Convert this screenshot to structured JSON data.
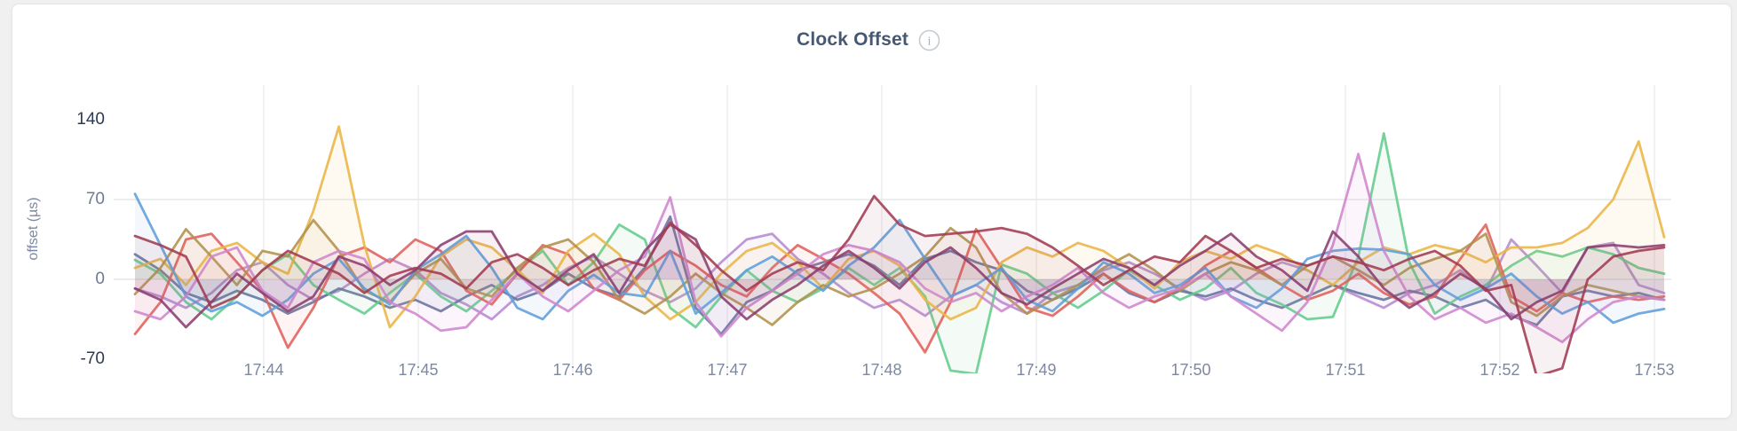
{
  "panel": {
    "title": "Clock Offset",
    "info_icon": "info-icon"
  },
  "chart_data": {
    "type": "line",
    "title": "Clock Offset",
    "xlabel": "",
    "ylabel": "offset (µs)",
    "ylim": [
      -70,
      140
    ],
    "yticks": [
      140,
      70,
      0,
      -70
    ],
    "ytick_colors": [
      "#2b3a55",
      "#6d7b95",
      "#6d7b95",
      "#2b3a55"
    ],
    "grid": true,
    "legend_position": "none",
    "x_start_time": "17:43:10",
    "x_interval_seconds": 10,
    "xticklabels": [
      "17:44",
      "17:45",
      "17:46",
      "17:47",
      "17:48",
      "17:49",
      "17:50",
      "17:51",
      "17:52",
      "17:53"
    ],
    "series": [
      {
        "name": "violet",
        "color": "#b58bd0",
        "values": [
          -8,
          -15,
          -25,
          -12,
          8,
          15,
          -5,
          -18,
          -10,
          5,
          18,
          8,
          -12,
          -22,
          -35,
          -15,
          -5,
          10,
          20,
          5,
          -10,
          -20,
          -8,
          15,
          35,
          40,
          18,
          5,
          -12,
          -25,
          -18,
          -32,
          -15,
          -5,
          -20,
          -30,
          -12,
          -5,
          8,
          15,
          5,
          -8,
          -18,
          -10,
          5,
          15,
          8,
          -5,
          -15,
          -25,
          -12,
          -5,
          8,
          -10,
          35,
          12,
          -12,
          28,
          32,
          -5,
          -12
        ]
      },
      {
        "name": "slate",
        "color": "#64739a",
        "values": [
          22,
          8,
          -12,
          -20,
          -10,
          -18,
          -30,
          -20,
          -8,
          -15,
          -25,
          -18,
          -28,
          -15,
          -5,
          -18,
          -10,
          5,
          -8,
          -15,
          10,
          55,
          -25,
          -48,
          -20,
          -10,
          8,
          15,
          22,
          12,
          -5,
          18,
          25,
          15,
          8,
          -10,
          -18,
          -8,
          5,
          -12,
          -20,
          -10,
          -15,
          -8,
          -18,
          -25,
          -15,
          -5,
          -12,
          -18,
          -10,
          -15,
          -25,
          -18,
          -32,
          -40,
          -15,
          -10,
          -15,
          -12,
          -18
        ]
      },
      {
        "name": "green",
        "color": "#63cc8c",
        "values": [
          17,
          5,
          -20,
          -35,
          -15,
          8,
          22,
          -5,
          -18,
          -30,
          -12,
          5,
          -15,
          -28,
          -10,
          8,
          25,
          -5,
          15,
          48,
          35,
          -25,
          -42,
          -15,
          8,
          -10,
          -20,
          -8,
          10,
          -5,
          10,
          -15,
          -80,
          -83,
          13,
          5,
          -12,
          -25,
          -10,
          8,
          -5,
          -18,
          -8,
          10,
          -12,
          -22,
          -35,
          -33,
          20,
          128,
          15,
          -30,
          -15,
          -5,
          12,
          25,
          20,
          28,
          22,
          10,
          5
        ]
      },
      {
        "name": "salmon",
        "color": "#e0605a",
        "values": [
          -48,
          -20,
          35,
          40,
          15,
          -10,
          -60,
          -25,
          20,
          28,
          15,
          35,
          25,
          -10,
          -22,
          5,
          30,
          22,
          -8,
          -18,
          8,
          25,
          12,
          -5,
          -15,
          10,
          30,
          18,
          5,
          -12,
          -30,
          -64,
          -20,
          44,
          10,
          -25,
          -32,
          -15,
          5,
          -10,
          -20,
          -8,
          12,
          25,
          10,
          -5,
          -18,
          -10,
          5,
          -12,
          -22,
          -15,
          18,
          48,
          -15,
          -28,
          -12,
          -20,
          -15,
          -18,
          -15
        ]
      },
      {
        "name": "yellow",
        "color": "#eab545",
        "values": [
          10,
          18,
          -5,
          25,
          32,
          15,
          5,
          60,
          134,
          30,
          -42,
          -15,
          20,
          35,
          28,
          8,
          -12,
          25,
          40,
          22,
          -15,
          -35,
          -20,
          5,
          25,
          32,
          15,
          -8,
          18,
          25,
          12,
          -18,
          -35,
          -25,
          15,
          28,
          20,
          32,
          25,
          10,
          -8,
          15,
          25,
          18,
          30,
          22,
          8,
          -5,
          15,
          28,
          22,
          30,
          25,
          15,
          28,
          28,
          32,
          45,
          70,
          121,
          37
        ]
      },
      {
        "name": "olive",
        "color": "#b2914c",
        "values": [
          -13,
          10,
          44,
          20,
          -5,
          25,
          20,
          52,
          25,
          -10,
          -20,
          5,
          18,
          -8,
          -15,
          10,
          28,
          35,
          15,
          -18,
          -30,
          -15,
          5,
          -12,
          -25,
          -40,
          -20,
          -5,
          -15,
          -8,
          5,
          20,
          45,
          28,
          -12,
          -30,
          -18,
          -5,
          10,
          22,
          8,
          -10,
          5,
          15,
          8,
          -5,
          12,
          20,
          8,
          -5,
          10,
          18,
          25,
          40,
          -20,
          -32,
          -15,
          -5,
          -10,
          -15,
          -18
        ]
      },
      {
        "name": "blue",
        "color": "#5f9edb",
        "values": [
          75,
          30,
          -15,
          -28,
          -20,
          -32,
          -18,
          5,
          18,
          -8,
          -22,
          8,
          22,
          38,
          10,
          -25,
          -35,
          -10,
          4,
          -12,
          -15,
          25,
          -30,
          -12,
          8,
          20,
          5,
          -10,
          12,
          28,
          52,
          18,
          -15,
          -5,
          10,
          -18,
          -28,
          -8,
          15,
          5,
          -12,
          -5,
          10,
          -15,
          -25,
          -8,
          18,
          25,
          27,
          26,
          22,
          -5,
          -18,
          -8,
          5,
          -15,
          -30,
          -20,
          -38,
          -30,
          -26
        ]
      },
      {
        "name": "orchid",
        "color": "#cf86ce",
        "values": [
          -28,
          -35,
          -15,
          20,
          28,
          -10,
          -25,
          15,
          25,
          18,
          -20,
          -30,
          -45,
          -42,
          -18,
          5,
          -15,
          -28,
          -10,
          8,
          20,
          72,
          -20,
          -50,
          -25,
          -10,
          5,
          22,
          30,
          25,
          15,
          -8,
          -20,
          -12,
          -28,
          -15,
          -5,
          10,
          -12,
          -25,
          -15,
          -8,
          5,
          -15,
          -30,
          -45,
          -20,
          30,
          110,
          25,
          -15,
          -35,
          -25,
          -38,
          -30,
          -42,
          -55,
          -35,
          -20,
          -15,
          -18
        ]
      },
      {
        "name": "plum",
        "color": "#8a3d6e",
        "values": [
          -8,
          -18,
          -42,
          -20,
          5,
          -12,
          -28,
          -15,
          20,
          12,
          -5,
          8,
          30,
          42,
          42,
          5,
          -10,
          8,
          22,
          -12,
          25,
          48,
          35,
          -15,
          -35,
          -18,
          -5,
          12,
          25,
          10,
          -8,
          15,
          28,
          10,
          -12,
          -22,
          -8,
          5,
          18,
          10,
          -5,
          12,
          25,
          40,
          20,
          8,
          -10,
          42,
          20,
          -8,
          -25,
          -12,
          5,
          -8,
          -35,
          -20,
          -10,
          28,
          30,
          28,
          30
        ]
      },
      {
        "name": "wine",
        "color": "#a23a52",
        "values": [
          38,
          30,
          20,
          -25,
          -15,
          8,
          25,
          15,
          5,
          -12,
          3,
          10,
          5,
          -8,
          15,
          22,
          10,
          -5,
          8,
          18,
          12,
          50,
          30,
          8,
          -10,
          5,
          15,
          8,
          35,
          73,
          48,
          38,
          40,
          42,
          45,
          40,
          28,
          12,
          -5,
          8,
          20,
          15,
          38,
          25,
          10,
          18,
          12,
          20,
          15,
          8,
          18,
          25,
          12,
          -10,
          -5,
          -85,
          -78,
          0,
          20,
          25,
          28
        ]
      }
    ]
  }
}
